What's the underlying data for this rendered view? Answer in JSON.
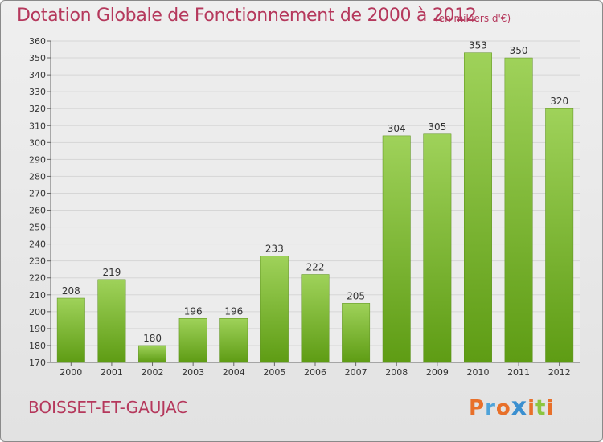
{
  "header": {
    "title": "Dotation Globale de Fonctionnement de 2000 à 2012",
    "subtitle": "(en milliers d'€)"
  },
  "footer": {
    "commune": "BOISSET-ET-GAUJAC",
    "logo_letters": [
      "P",
      "r",
      "o",
      "x",
      "i",
      "t",
      "i"
    ],
    "logo_colors": [
      "#e8702a",
      "#4fa3d9",
      "#e8702a",
      "#3a8fd0",
      "#e8702a",
      "#8cc63f",
      "#e8702a"
    ]
  },
  "colors": {
    "bar_light": "#9fd25a",
    "bar_dark": "#5e9c14",
    "title": "#b5385c",
    "grid": "#d6d6d6"
  },
  "chart_data": {
    "type": "bar",
    "categories": [
      "2000",
      "2001",
      "2002",
      "2003",
      "2004",
      "2005",
      "2006",
      "2007",
      "2008",
      "2009",
      "2010",
      "2011",
      "2012"
    ],
    "values": [
      208,
      219,
      180,
      196,
      196,
      233,
      222,
      205,
      304,
      305,
      353,
      350,
      320
    ],
    "ylim": [
      170,
      360
    ],
    "yticks": [
      170,
      180,
      190,
      200,
      210,
      220,
      230,
      240,
      250,
      260,
      270,
      280,
      290,
      300,
      310,
      320,
      330,
      340,
      350,
      360
    ],
    "grid": true
  }
}
